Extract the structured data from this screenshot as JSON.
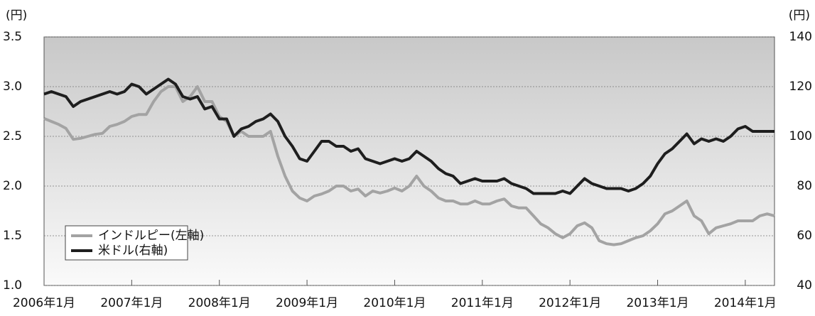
{
  "chart_data": {
    "type": "line",
    "y_label": "(円)",
    "y2_label": "(円)",
    "x": [
      "2006-01",
      "2006-02",
      "2006-03",
      "2006-04",
      "2006-05",
      "2006-06",
      "2006-07",
      "2006-08",
      "2006-09",
      "2006-10",
      "2006-11",
      "2006-12",
      "2007-01",
      "2007-02",
      "2007-03",
      "2007-04",
      "2007-05",
      "2007-06",
      "2007-07",
      "2007-08",
      "2007-09",
      "2007-10",
      "2007-11",
      "2007-12",
      "2008-01",
      "2008-02",
      "2008-03",
      "2008-04",
      "2008-05",
      "2008-06",
      "2008-07",
      "2008-08",
      "2008-09",
      "2008-10",
      "2008-11",
      "2008-12",
      "2009-01",
      "2009-02",
      "2009-03",
      "2009-04",
      "2009-05",
      "2009-06",
      "2009-07",
      "2009-08",
      "2009-09",
      "2009-10",
      "2009-11",
      "2009-12",
      "2010-01",
      "2010-02",
      "2010-03",
      "2010-04",
      "2010-05",
      "2010-06",
      "2010-07",
      "2010-08",
      "2010-09",
      "2010-10",
      "2010-11",
      "2010-12",
      "2011-01",
      "2011-02",
      "2011-03",
      "2011-04",
      "2011-05",
      "2011-06",
      "2011-07",
      "2011-08",
      "2011-09",
      "2011-10",
      "2011-11",
      "2011-12",
      "2012-01",
      "2012-02",
      "2012-03",
      "2012-04",
      "2012-05",
      "2012-06",
      "2012-07",
      "2012-08",
      "2012-09",
      "2012-10",
      "2012-11",
      "2012-12",
      "2013-01",
      "2013-02",
      "2013-03",
      "2013-04",
      "2013-05",
      "2013-06",
      "2013-07",
      "2013-08",
      "2013-09",
      "2013-10",
      "2013-11",
      "2013-12",
      "2014-01",
      "2014-02",
      "2014-03",
      "2014-04",
      "2014-05"
    ],
    "series": [
      {
        "name": "インドルピー(左軸)",
        "color": "#a3a3a3",
        "values": [
          2.68,
          2.65,
          2.62,
          2.58,
          2.47,
          2.48,
          2.5,
          2.52,
          2.53,
          2.6,
          2.62,
          2.65,
          2.7,
          2.72,
          2.72,
          2.85,
          2.95,
          3.0,
          3.0,
          2.85,
          2.9,
          3.0,
          2.85,
          2.85,
          2.7,
          2.65,
          2.5,
          2.55,
          2.5,
          2.5,
          2.5,
          2.55,
          2.3,
          2.1,
          1.95,
          1.88,
          1.85,
          1.9,
          1.92,
          1.95,
          2.0,
          2.0,
          1.95,
          1.97,
          1.9,
          1.95,
          1.93,
          1.95,
          1.98,
          1.95,
          2.0,
          2.1,
          2.0,
          1.95,
          1.88,
          1.85,
          1.85,
          1.82,
          1.82,
          1.85,
          1.82,
          1.82,
          1.85,
          1.87,
          1.8,
          1.78,
          1.78,
          1.7,
          1.62,
          1.58,
          1.52,
          1.48,
          1.52,
          1.6,
          1.63,
          1.58,
          1.45,
          1.42,
          1.41,
          1.42,
          1.45,
          1.48,
          1.5,
          1.55,
          1.62,
          1.72,
          1.75,
          1.8,
          1.85,
          1.7,
          1.65,
          1.52,
          1.58,
          1.6,
          1.62,
          1.65,
          1.65,
          1.65,
          1.7,
          1.72,
          1.7
        ]
      },
      {
        "name": "米ドル(右軸)",
        "color": "#1e1e1e",
        "axis": "y2",
        "values": [
          117,
          118,
          117,
          116,
          112,
          114,
          115,
          116,
          117,
          118,
          117,
          118,
          121,
          120,
          117,
          119,
          121,
          123,
          121,
          116,
          115,
          116,
          111,
          112,
          107,
          107,
          100,
          103,
          104,
          106,
          107,
          109,
          106,
          100,
          96,
          91,
          90,
          94,
          98,
          98,
          96,
          96,
          94,
          95,
          91,
          90,
          89,
          90,
          91,
          90,
          91,
          94,
          92,
          90,
          87,
          85,
          84,
          81,
          82,
          83,
          82,
          82,
          82,
          83,
          81,
          80,
          79,
          77,
          77,
          77,
          77,
          78,
          77,
          80,
          83,
          81,
          80,
          79,
          79,
          79,
          78,
          79,
          81,
          84,
          89,
          93,
          95,
          98,
          101,
          97,
          99,
          98,
          99,
          98,
          100,
          103,
          104,
          102,
          102,
          102,
          102
        ]
      }
    ],
    "xlim": [
      "2006-01",
      "2014-05"
    ],
    "xticks": [
      {
        "value": "2006-01",
        "label": "2006年1月"
      },
      {
        "value": "2007-01",
        "label": "2007年1月"
      },
      {
        "value": "2008-01",
        "label": "2008年1月"
      },
      {
        "value": "2009-01",
        "label": "2009年1月"
      },
      {
        "value": "2010-01",
        "label": "2010年1月"
      },
      {
        "value": "2011-01",
        "label": "2011年1月"
      },
      {
        "value": "2012-01",
        "label": "2012年1月"
      },
      {
        "value": "2013-01",
        "label": "2013年1月"
      },
      {
        "value": "2014-01",
        "label": "2014年1月"
      }
    ],
    "ylim": [
      1.0,
      3.5
    ],
    "yticks": [
      {
        "value": 1.0,
        "label": "1.0"
      },
      1.5,
      {
        "value": 2.0,
        "label": "2.0"
      },
      2.5,
      {
        "value": 3.0,
        "label": "3.0"
      },
      3.5
    ],
    "y2lim": [
      40,
      140
    ],
    "y2ticks": [
      40,
      60,
      80,
      100,
      120,
      140
    ],
    "grid": true,
    "legend": "lower left"
  }
}
